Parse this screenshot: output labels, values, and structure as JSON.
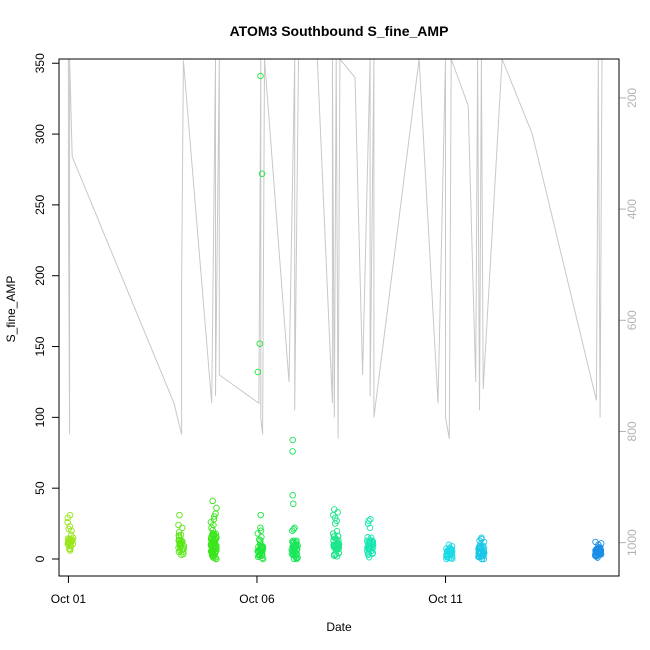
{
  "chart_data": {
    "type": "scatter",
    "title": "ATOM3 Southbound S_fine_AMP",
    "xlabel": "Date",
    "ylabel": "S_fine_AMP",
    "x_ticks": [
      {
        "label": "Oct 01",
        "day": 1
      },
      {
        "label": "Oct 06",
        "day": 6
      },
      {
        "label": "Oct 11",
        "day": 11
      }
    ],
    "xlim": [
      0.75,
      15.6
    ],
    "ylim": [
      -12,
      353
    ],
    "y_ticks": [
      0,
      50,
      100,
      150,
      200,
      250,
      300,
      350
    ],
    "right_axis": {
      "reversed": true,
      "lim": [
        130,
        1060
      ],
      "ticks": [
        200,
        400,
        600,
        800,
        1000
      ],
      "color": "#b3b3b3"
    },
    "overlay_line": {
      "color": "#c8c8c8",
      "description_values": [
        [
          1.0,
          353
        ],
        [
          1.0,
          260
        ],
        [
          1.03,
          88
        ],
        [
          1.03,
          353
        ],
        [
          1.1,
          284
        ],
        [
          3.8,
          110
        ],
        [
          4.0,
          88
        ],
        [
          4.0,
          194
        ],
        [
          4.05,
          352
        ],
        [
          4.8,
          110
        ],
        [
          4.9,
          353
        ],
        [
          4.9,
          115
        ],
        [
          5.0,
          353
        ],
        [
          5.0,
          130
        ],
        [
          6.05,
          110
        ],
        [
          6.1,
          353
        ],
        [
          6.1,
          100
        ],
        [
          6.15,
          88
        ],
        [
          6.2,
          353
        ],
        [
          6.85,
          125
        ],
        [
          7.0,
          353
        ],
        [
          7.0,
          105
        ],
        [
          7.1,
          353
        ],
        [
          7.6,
          353
        ],
        [
          8.0,
          110
        ],
        [
          8.0,
          353
        ],
        [
          8.05,
          100
        ],
        [
          8.1,
          353
        ],
        [
          8.15,
          85
        ],
        [
          8.2,
          353
        ],
        [
          8.6,
          340
        ],
        [
          8.8,
          130
        ],
        [
          9.0,
          353
        ],
        [
          9.0,
          115
        ],
        [
          9.1,
          353
        ],
        [
          9.1,
          100
        ],
        [
          10.3,
          353
        ],
        [
          10.8,
          110
        ],
        [
          11.0,
          353
        ],
        [
          11.0,
          100
        ],
        [
          11.1,
          85
        ],
        [
          11.15,
          353
        ],
        [
          11.6,
          320
        ],
        [
          11.8,
          125
        ],
        [
          11.85,
          353
        ],
        [
          11.9,
          105
        ],
        [
          11.95,
          353
        ],
        [
          12.0,
          120
        ],
        [
          12.5,
          353
        ],
        [
          13.3,
          300
        ],
        [
          15.0,
          112
        ],
        [
          15.05,
          353
        ],
        [
          15.1,
          100
        ],
        [
          15.15,
          353
        ]
      ]
    },
    "series": [
      {
        "day": 1.05,
        "center": 13,
        "spread": 9,
        "count": 18,
        "color": "#9be61a",
        "extra": [
          31,
          29,
          26,
          23,
          20,
          17,
          15,
          12,
          9,
          7
        ]
      },
      {
        "day": 4.0,
        "center": 10,
        "spread": 8,
        "count": 22,
        "color": "#5ce61a",
        "extra": [
          31,
          24,
          22,
          19,
          17,
          15,
          13,
          10,
          8,
          5,
          3
        ]
      },
      {
        "day": 4.85,
        "center": 10,
        "spread": 12,
        "count": 55,
        "color": "#3ae61a",
        "extra": [
          41,
          36,
          32,
          30,
          28,
          26,
          24,
          22,
          1,
          2,
          3
        ]
      },
      {
        "day": 6.1,
        "center": 8,
        "spread": 9,
        "count": 30,
        "color": "#1fe63b",
        "extra": [
          341,
          272,
          152,
          132,
          31,
          22,
          20,
          18
        ]
      },
      {
        "day": 7.0,
        "center": 7,
        "spread": 8,
        "count": 40,
        "color": "#1ae65a",
        "extra": [
          84,
          76,
          45,
          39,
          22,
          21,
          20
        ]
      },
      {
        "day": 8.1,
        "center": 10,
        "spread": 10,
        "count": 40,
        "color": "#1ae68a",
        "extra": [
          35,
          33,
          31,
          29,
          27,
          25
        ]
      },
      {
        "day": 9.0,
        "center": 9,
        "spread": 9,
        "count": 35,
        "color": "#1ae6b2",
        "extra": [
          28,
          27,
          25,
          22
        ]
      },
      {
        "day": 11.1,
        "center": 4,
        "spread": 4,
        "count": 28,
        "color": "#1adbe6",
        "extra": [
          10,
          9,
          8,
          1,
          0
        ]
      },
      {
        "day": 11.95,
        "center": 5,
        "spread": 6,
        "count": 40,
        "color": "#1ac8e6",
        "extra": [
          15,
          14,
          13,
          12,
          0
        ]
      },
      {
        "day": 15.05,
        "center": 5,
        "spread": 4,
        "count": 40,
        "color": "#1a8de6",
        "extra": [
          12,
          11,
          10,
          1
        ]
      }
    ]
  }
}
